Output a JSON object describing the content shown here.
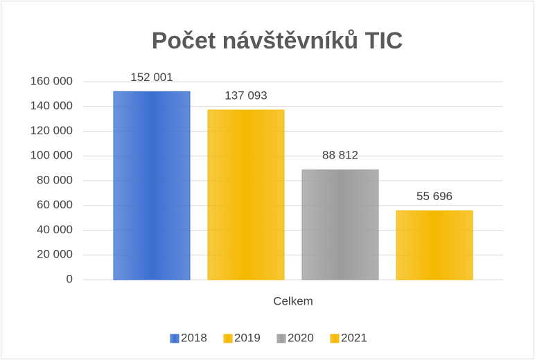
{
  "chart_data": {
    "type": "bar",
    "title": "Počet návštěvníků TIC",
    "categories": [
      "Celkem"
    ],
    "series": [
      {
        "name": "2018",
        "color": "#3b6fd1",
        "values": [
          152001
        ],
        "value_labels": [
          "152 001"
        ]
      },
      {
        "name": "2019",
        "color": "#f5b800",
        "values": [
          137093
        ],
        "value_labels": [
          "137 093"
        ]
      },
      {
        "name": "2020",
        "color": "#9c9c9c",
        "values": [
          88812
        ],
        "value_labels": [
          "88 812"
        ]
      },
      {
        "name": "2021",
        "color": "#f5b800",
        "values": [
          55696
        ],
        "value_labels": [
          "55 696"
        ]
      }
    ],
    "ylim": [
      0,
      160000
    ],
    "yticks": [
      {
        "value": 0,
        "label": "0"
      },
      {
        "value": 20000,
        "label": "20 000"
      },
      {
        "value": 40000,
        "label": "40 000"
      },
      {
        "value": 60000,
        "label": "60 000"
      },
      {
        "value": 80000,
        "label": "80 000"
      },
      {
        "value": 100000,
        "label": "100 000"
      },
      {
        "value": 120000,
        "label": "120 000"
      },
      {
        "value": 140000,
        "label": "140 000"
      },
      {
        "value": 160000,
        "label": "160 000"
      }
    ],
    "grid": true,
    "legend": "bottom"
  }
}
